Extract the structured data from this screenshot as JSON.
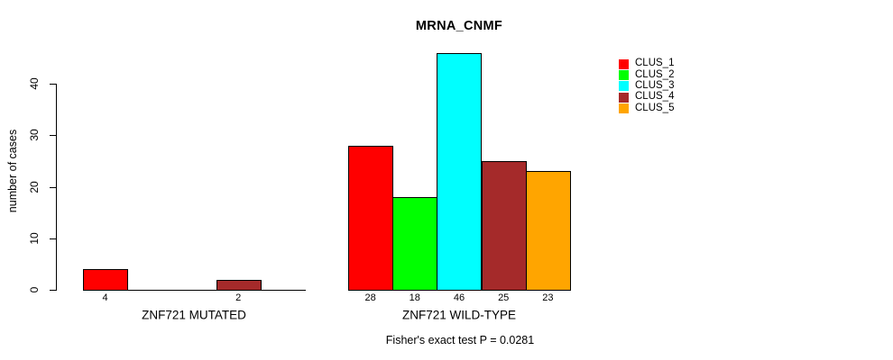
{
  "chart_data": {
    "type": "bar",
    "title": "MRNA_CNMF",
    "ylabel": "number of cases",
    "footnote": "Fisher's exact test P = 0.0281",
    "ylim": [
      0,
      46
    ],
    "yticks": [
      0,
      10,
      20,
      30,
      40
    ],
    "grid": false,
    "legend_position": "right",
    "series": [
      {
        "name": "CLUS_1",
        "color": "#FF0000"
      },
      {
        "name": "CLUS_2",
        "color": "#00FF00"
      },
      {
        "name": "CLUS_3",
        "color": "#00FFFF"
      },
      {
        "name": "CLUS_4",
        "color": "#A52A2A"
      },
      {
        "name": "CLUS_5",
        "color": "#FFA500"
      }
    ],
    "groups": [
      {
        "label": "ZNF721 MUTATED",
        "values": [
          4,
          0,
          0,
          2,
          0
        ],
        "value_labels": [
          "4",
          "",
          "",
          "2",
          ""
        ]
      },
      {
        "label": "ZNF721 WILD-TYPE",
        "values": [
          28,
          18,
          46,
          25,
          23
        ],
        "value_labels": [
          "28",
          "18",
          "46",
          "25",
          "23"
        ]
      }
    ]
  }
}
